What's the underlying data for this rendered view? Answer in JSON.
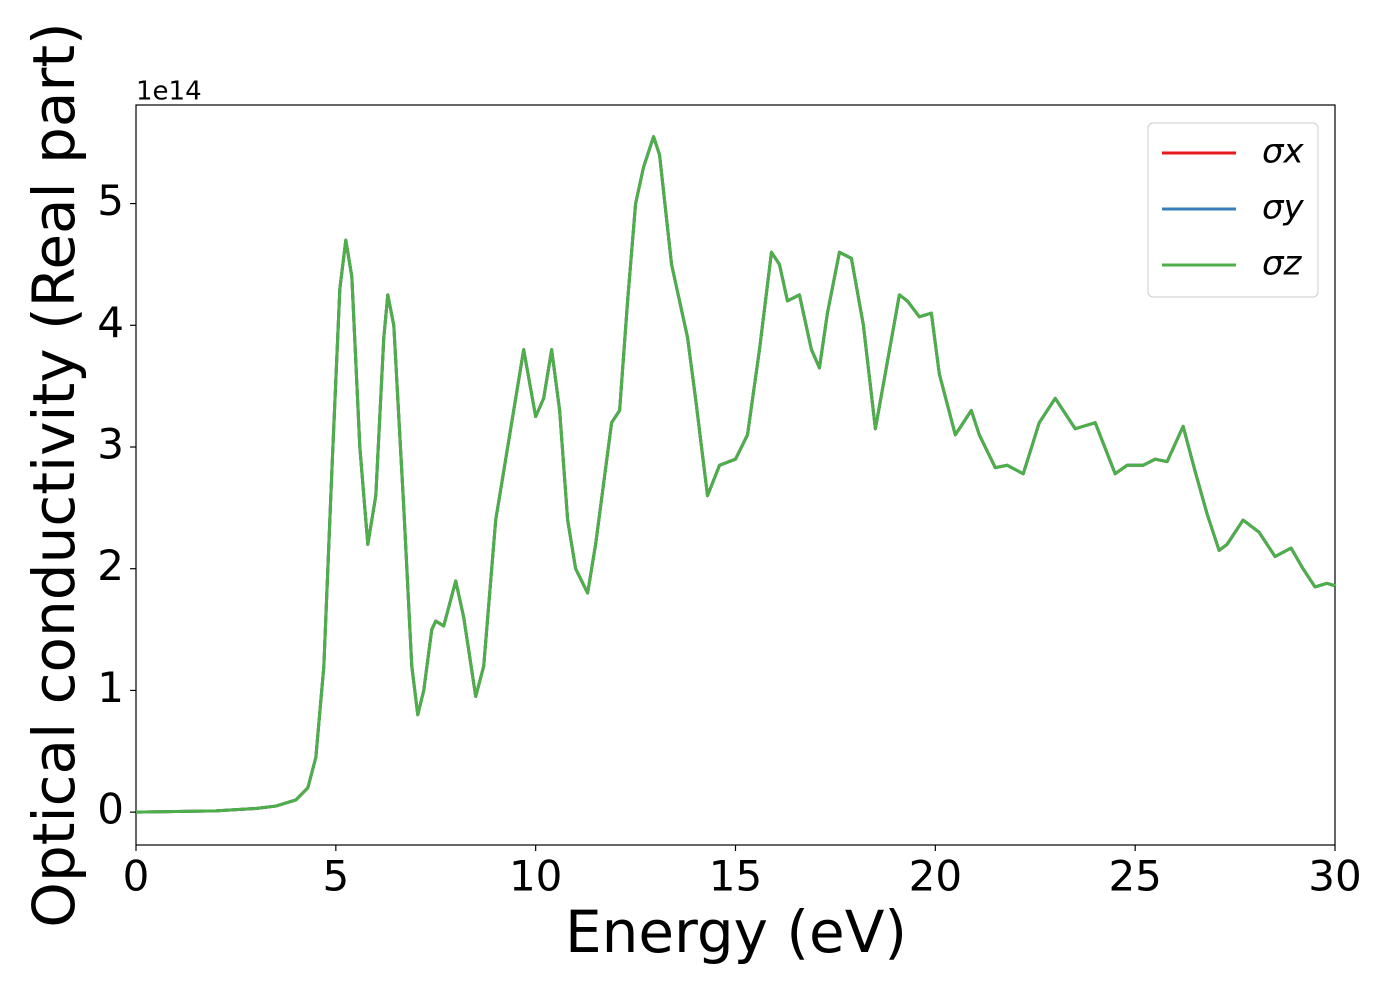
{
  "chart_data": {
    "type": "line",
    "xlabel": "Energy (eV)",
    "ylabel": "Optical conductivity (Real part)",
    "offset_label": "1e14",
    "x": [
      0,
      2,
      3,
      3.5,
      4,
      4.3,
      4.5,
      4.7,
      4.9,
      5.1,
      5.25,
      5.4,
      5.6,
      5.8,
      6.0,
      6.2,
      6.3,
      6.45,
      6.7,
      6.9,
      7.05,
      7.2,
      7.4,
      7.5,
      7.7,
      8.0,
      8.2,
      8.5,
      8.7,
      9.0,
      9.3,
      9.7,
      10.0,
      10.2,
      10.4,
      10.6,
      10.8,
      11.0,
      11.3,
      11.5,
      11.9,
      12.1,
      12.3,
      12.5,
      12.7,
      12.95,
      13.1,
      13.4,
      13.8,
      14.0,
      14.3,
      14.6,
      15.0,
      15.3,
      15.6,
      15.9,
      16.1,
      16.3,
      16.6,
      16.9,
      17.1,
      17.3,
      17.6,
      17.9,
      18.2,
      18.5,
      18.8,
      19.1,
      19.3,
      19.6,
      19.9,
      20.1,
      20.5,
      20.9,
      21.1,
      21.5,
      21.8,
      22.2,
      22.6,
      23.0,
      23.5,
      24.0,
      24.5,
      24.8,
      25.2,
      25.5,
      25.8,
      26.2,
      26.5,
      26.8,
      27.1,
      27.3,
      27.7,
      28.1,
      28.5,
      28.9,
      29.2,
      29.5,
      29.8,
      30
    ],
    "series": [
      {
        "name": "σx",
        "color": "#e41a1c",
        "values": [
          0,
          0.01,
          0.03,
          0.05,
          0.1,
          0.2,
          0.45,
          1.2,
          2.8,
          4.3,
          4.7,
          4.4,
          3.0,
          2.2,
          2.6,
          3.9,
          4.25,
          4.0,
          2.5,
          1.2,
          0.8,
          1.0,
          1.5,
          1.57,
          1.53,
          1.9,
          1.6,
          0.95,
          1.2,
          2.4,
          3.0,
          3.8,
          3.25,
          3.4,
          3.8,
          3.3,
          2.4,
          2.0,
          1.8,
          2.2,
          3.2,
          3.3,
          4.2,
          5.0,
          5.3,
          5.55,
          5.4,
          4.5,
          3.9,
          3.4,
          2.6,
          2.85,
          2.9,
          3.1,
          3.8,
          4.6,
          4.5,
          4.2,
          4.25,
          3.8,
          3.65,
          4.1,
          4.6,
          4.55,
          4.0,
          3.15,
          3.7,
          4.25,
          4.2,
          4.07,
          4.1,
          3.6,
          3.1,
          3.3,
          3.1,
          2.83,
          2.85,
          2.78,
          3.2,
          3.4,
          3.15,
          3.2,
          2.78,
          2.85,
          2.85,
          2.9,
          2.88,
          3.17,
          2.8,
          2.45,
          2.15,
          2.2,
          2.4,
          2.3,
          2.1,
          2.17,
          2.0,
          1.85,
          1.88,
          1.86
        ]
      },
      {
        "name": "σy",
        "color": "#377eb8",
        "values": [
          0,
          0.01,
          0.03,
          0.05,
          0.1,
          0.2,
          0.45,
          1.2,
          2.8,
          4.3,
          4.7,
          4.4,
          3.0,
          2.2,
          2.6,
          3.9,
          4.25,
          4.0,
          2.5,
          1.2,
          0.8,
          1.0,
          1.5,
          1.57,
          1.53,
          1.9,
          1.6,
          0.95,
          1.2,
          2.4,
          3.0,
          3.8,
          3.25,
          3.4,
          3.8,
          3.3,
          2.4,
          2.0,
          1.8,
          2.2,
          3.2,
          3.3,
          4.2,
          5.0,
          5.3,
          5.55,
          5.4,
          4.5,
          3.9,
          3.4,
          2.6,
          2.85,
          2.9,
          3.1,
          3.8,
          4.6,
          4.5,
          4.2,
          4.25,
          3.8,
          3.65,
          4.1,
          4.6,
          4.55,
          4.0,
          3.15,
          3.7,
          4.25,
          4.2,
          4.07,
          4.1,
          3.6,
          3.1,
          3.3,
          3.1,
          2.83,
          2.85,
          2.78,
          3.2,
          3.4,
          3.15,
          3.2,
          2.78,
          2.85,
          2.85,
          2.9,
          2.88,
          3.17,
          2.8,
          2.45,
          2.15,
          2.2,
          2.4,
          2.3,
          2.1,
          2.17,
          2.0,
          1.85,
          1.88,
          1.86
        ]
      },
      {
        "name": "σz",
        "color": "#4daf4a",
        "values": [
          0,
          0.01,
          0.03,
          0.05,
          0.1,
          0.2,
          0.45,
          1.2,
          2.8,
          4.3,
          4.7,
          4.4,
          3.0,
          2.2,
          2.6,
          3.9,
          4.25,
          4.0,
          2.5,
          1.2,
          0.8,
          1.0,
          1.5,
          1.57,
          1.53,
          1.9,
          1.6,
          0.95,
          1.2,
          2.4,
          3.0,
          3.8,
          3.25,
          3.4,
          3.8,
          3.3,
          2.4,
          2.0,
          1.8,
          2.2,
          3.2,
          3.3,
          4.2,
          5.0,
          5.3,
          5.55,
          5.4,
          4.5,
          3.9,
          3.4,
          2.6,
          2.85,
          2.9,
          3.1,
          3.8,
          4.6,
          4.5,
          4.2,
          4.25,
          3.8,
          3.65,
          4.1,
          4.6,
          4.55,
          4.0,
          3.15,
          3.7,
          4.25,
          4.2,
          4.07,
          4.1,
          3.6,
          3.1,
          3.3,
          3.1,
          2.83,
          2.85,
          2.78,
          3.2,
          3.4,
          3.15,
          3.2,
          2.78,
          2.85,
          2.85,
          2.9,
          2.88,
          3.17,
          2.8,
          2.45,
          2.15,
          2.2,
          2.4,
          2.3,
          2.1,
          2.17,
          2.0,
          1.85,
          1.88,
          1.86
        ]
      }
    ],
    "xlim": [
      0,
      30
    ],
    "xticks": [
      0,
      5,
      10,
      15,
      20,
      25,
      30
    ],
    "ylim": [
      -0.27,
      5.81
    ],
    "yticks": [
      0,
      1,
      2,
      3,
      4,
      5
    ],
    "grid": false,
    "legend": "upper right"
  }
}
